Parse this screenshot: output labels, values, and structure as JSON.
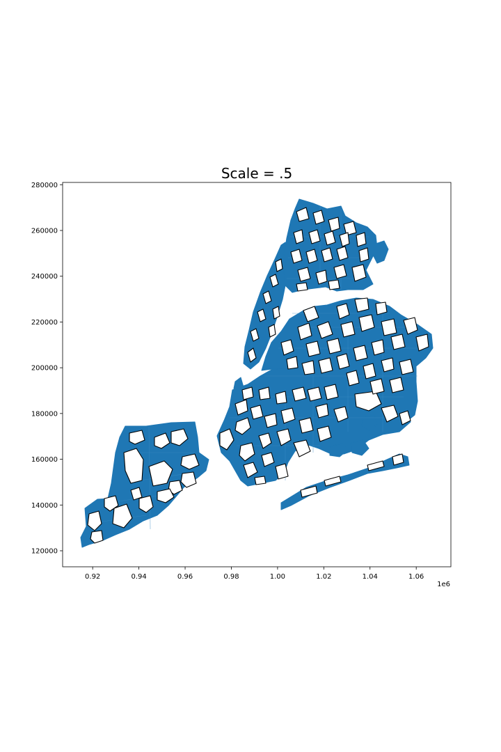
{
  "title": "Scale = .5",
  "x_offset_label": "1e6",
  "chart_data": {
    "type": "map",
    "title": "Scale = .5",
    "xlim": [
      0.907,
      1.075
    ],
    "ylim": [
      113000,
      281000
    ],
    "x_ticks": [
      0.92,
      0.94,
      0.96,
      0.98,
      1.0,
      1.02,
      1.04,
      1.06
    ],
    "x_tick_labels": [
      "0.92",
      "0.94",
      "0.96",
      "0.98",
      "1.00",
      "1.02",
      "1.04",
      "1.06"
    ],
    "y_ticks": [
      120000,
      140000,
      160000,
      180000,
      200000,
      220000,
      240000,
      260000,
      280000
    ],
    "y_tick_labels": [
      "120000",
      "140000",
      "160000",
      "180000",
      "200000",
      "220000",
      "240000",
      "260000",
      "280000"
    ],
    "x_offset": "1e6",
    "grid": false,
    "fill_color": "#1f77b4",
    "hole_outline_color": "#000000"
  }
}
